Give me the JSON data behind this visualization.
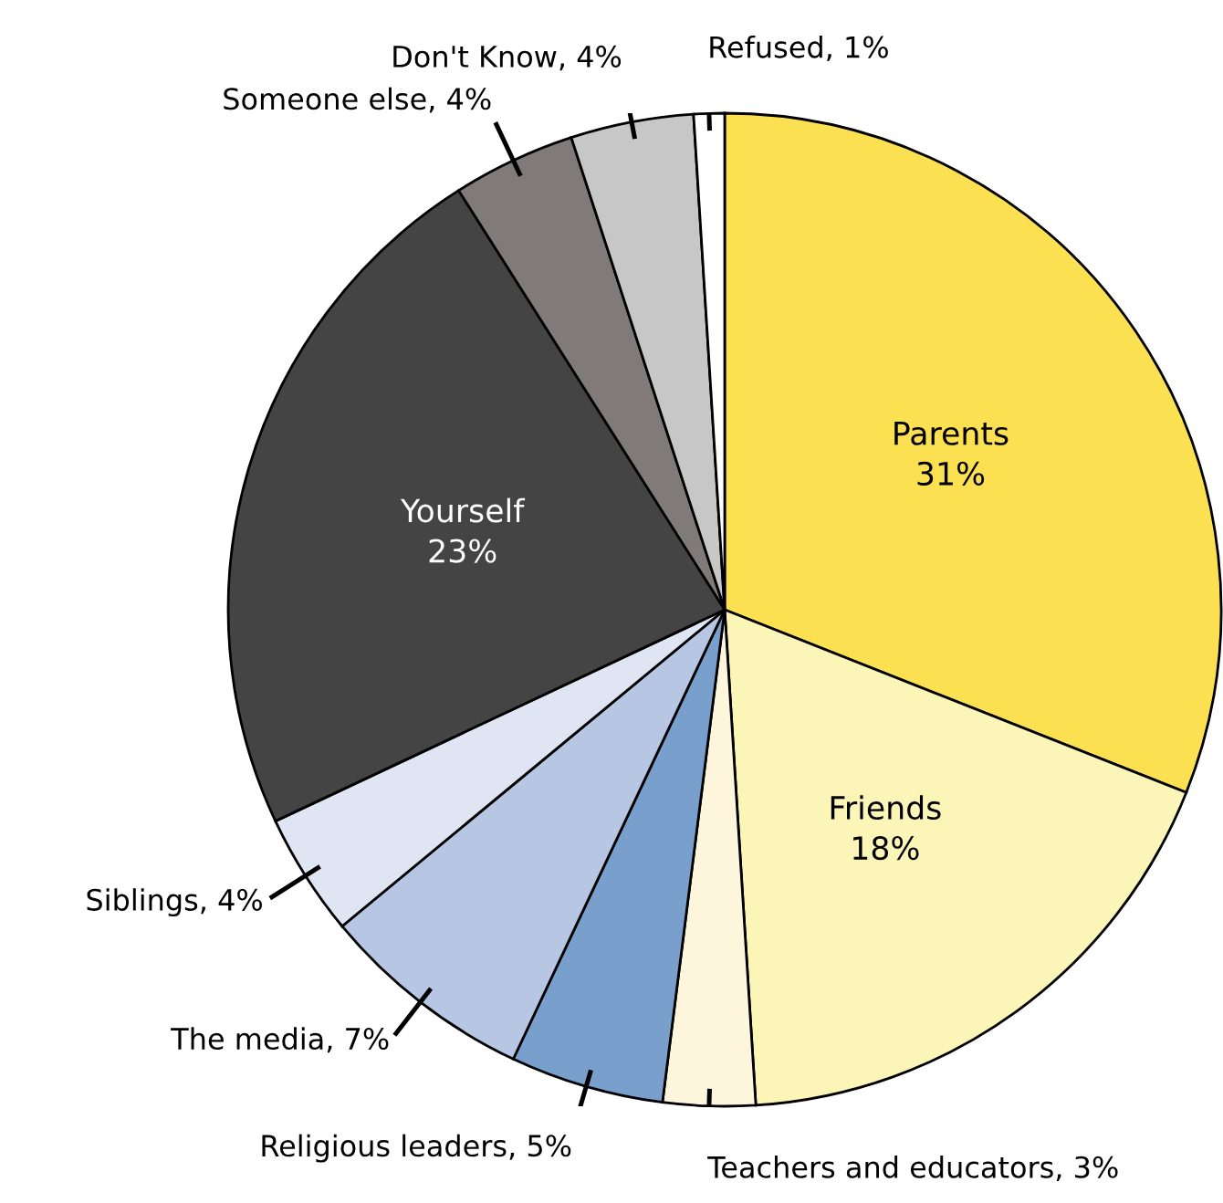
{
  "chart_data": {
    "type": "pie",
    "categories": [
      "Parents",
      "Friends",
      "Teachers and educators",
      "Religious leaders",
      "The media",
      "Siblings",
      "Yourself",
      "Someone else",
      "Don't Know",
      "Refused"
    ],
    "values": [
      31,
      18,
      3,
      5,
      7,
      4,
      23,
      4,
      4,
      1
    ],
    "value_labels": [
      "31%",
      "18%",
      "3%",
      "5%",
      "7%",
      "4%",
      "23%",
      "4%",
      "4%",
      "1%"
    ],
    "colors": [
      "#fbe052",
      "#fcf5b8",
      "#fdf6dd",
      "#799fcd",
      "#b7c7e3",
      "#dfe5f3",
      "#444444",
      "#807a7a",
      "#c7c7c7",
      "#ffffff"
    ],
    "legend": false
  }
}
